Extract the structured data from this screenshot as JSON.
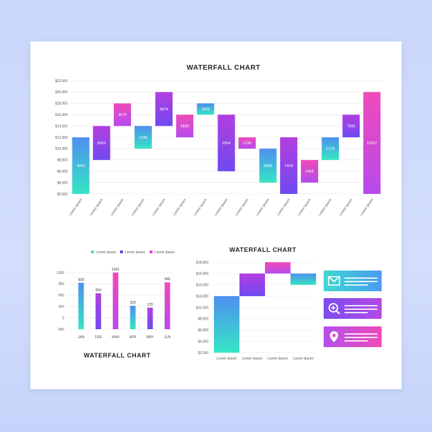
{
  "chart_data": [
    {
      "type": "waterfall",
      "title": "WATERFALL CHART",
      "y_ticks": [
        "$2,000",
        "$4,000",
        "$6,000",
        "$8,000",
        "$10,000",
        "$12,000",
        "$14,000",
        "$16,000",
        "$18,000",
        "$20,000",
        "$22,000"
      ],
      "ylim": [
        2000,
        22000
      ],
      "categories": [
        "Lorem Ipsum",
        "Lorem Ipsum",
        "Lorem Ipsum",
        "Lorem Ipsum",
        "Lorem Ipsum",
        "Lorem Ipsum",
        "Lorem Ipsum",
        "Lorem Ipsum",
        "Lorem Ipsum",
        "Lorem Ipsum",
        "Lorem Ipsum",
        "Lorem Ipsum",
        "Lorem Ipsum",
        "Lorem Ipsum",
        "Lorem Ipsum"
      ],
      "bars": [
        {
          "label": "4659",
          "start": 2000,
          "end": 12000,
          "color": "teal"
        },
        {
          "label": "8563",
          "start": 8000,
          "end": 14000,
          "color": "purple"
        },
        {
          "label": "3579",
          "start": 14000,
          "end": 18000,
          "color": "pink"
        },
        {
          "label": "1236",
          "start": 10000,
          "end": 14000,
          "color": "teal"
        },
        {
          "label": "5874",
          "start": 14000,
          "end": 20000,
          "color": "purple"
        },
        {
          "label": "4839",
          "start": 12000,
          "end": 16000,
          "color": "pink"
        },
        {
          "label": "1965",
          "start": 16000,
          "end": 18000,
          "color": "teal"
        },
        {
          "label": "2554",
          "start": 6000,
          "end": 16000,
          "color": "purple"
        },
        {
          "label": "1236",
          "start": 10000,
          "end": 12000,
          "color": "pink"
        },
        {
          "label": "8063",
          "start": 4000,
          "end": 10000,
          "color": "teal"
        },
        {
          "label": "7418",
          "start": 2000,
          "end": 12000,
          "color": "purple"
        },
        {
          "label": "1426",
          "start": 4000,
          "end": 8000,
          "color": "pink"
        },
        {
          "label": "2179",
          "start": 8000,
          "end": 12000,
          "color": "teal"
        },
        {
          "label": "7846",
          "start": 12000,
          "end": 16000,
          "color": "purple"
        },
        {
          "label": "10257",
          "start": 2000,
          "end": 20000,
          "color": "pink"
        }
      ]
    },
    {
      "type": "bar",
      "title": "WATERFALL CHART",
      "legend": [
        "Lorem Ipsum",
        "Lorem Ipsum",
        "Lorem Ipsum"
      ],
      "legend_colors": [
        "#3ee0c8",
        "#5a3fe0",
        "#d640d8"
      ],
      "y_ticks": [
        "1200",
        "900",
        "600",
        "300",
        "0",
        "-300"
      ],
      "ylim": [
        -300,
        1200
      ],
      "categories": [
        "JAN",
        "FEB",
        "MAR",
        "APR",
        "MAY",
        "JUN"
      ],
      "values": [
        930,
        650,
        1201,
        320,
        270,
        940
      ],
      "colors": [
        "teal",
        "purple",
        "pink",
        "teal",
        "purple",
        "pink"
      ]
    },
    {
      "type": "waterfall",
      "title": "WATERFALL CHART",
      "y_ticks": [
        "$2,000",
        "$4,000",
        "$6,000",
        "$8,000",
        "$10,000",
        "$12,000",
        "$14,000",
        "$16,000",
        "$18,000"
      ],
      "ylim": [
        2000,
        18000
      ],
      "categories": [
        "Lorem Ipsum",
        "Lorem Ipsum",
        "Lorem Ipsum",
        "Lorem Ipsum"
      ],
      "bars": [
        {
          "start": 2000,
          "end": 12000,
          "color": "teal"
        },
        {
          "start": 12000,
          "end": 16000,
          "color": "purple"
        },
        {
          "start": 16000,
          "end": 18000,
          "color": "pink"
        },
        {
          "start": 14000,
          "end": 16000,
          "color": "teal"
        }
      ]
    }
  ],
  "info_cards": [
    {
      "icon": "envelope-icon",
      "color": "teal"
    },
    {
      "icon": "zoom-in-icon",
      "color": "purple"
    },
    {
      "icon": "location-pin-icon",
      "color": "pink"
    }
  ]
}
